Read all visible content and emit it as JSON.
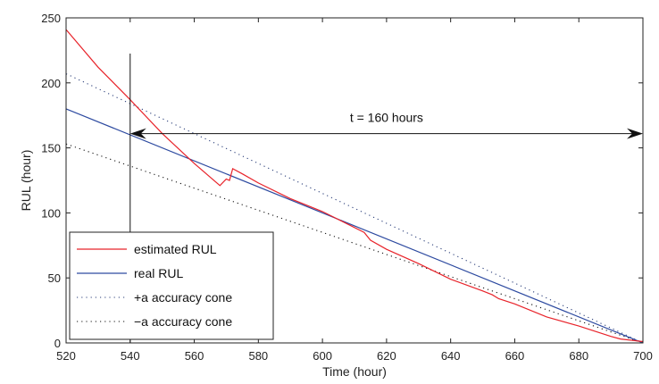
{
  "chart_data": {
    "type": "line",
    "title": "",
    "xlabel": "Time (hour)",
    "ylabel": "RUL (hour)",
    "xlim": [
      520,
      700
    ],
    "ylim": [
      0,
      250
    ],
    "xticks": [
      520,
      540,
      560,
      580,
      600,
      620,
      640,
      660,
      680,
      700
    ],
    "yticks": [
      0,
      50,
      100,
      150,
      200,
      250
    ],
    "grid": false,
    "legend_position": "bottom-left",
    "series": [
      {
        "name": "estimated RUL",
        "color": "#e8232a",
        "style": "solid",
        "x": [
          520,
          530,
          540,
          550,
          560,
          568,
          570,
          571,
          572,
          575,
          580,
          590,
          600,
          613,
          615,
          620,
          630,
          640,
          650,
          653,
          655,
          660,
          670,
          680,
          690,
          693,
          700
        ],
        "y": [
          241,
          212,
          187,
          161,
          138,
          121,
          126,
          125,
          134,
          130,
          123,
          111,
          101,
          85,
          79,
          72,
          61,
          49,
          40,
          37,
          34,
          30,
          20,
          13,
          5,
          3,
          1
        ]
      },
      {
        "name": "real RUL",
        "color": "#2d4aa0",
        "style": "solid",
        "x": [
          520,
          700
        ],
        "y": [
          180,
          0
        ]
      },
      {
        "name": "+a accuracy cone",
        "color": "#2b3f7a",
        "style": "dotted",
        "x": [
          520,
          700
        ],
        "y": [
          207,
          0
        ]
      },
      {
        "name": "−a accuracy cone",
        "color": "#111111",
        "style": "dotted",
        "x": [
          520,
          700
        ],
        "y": [
          153,
          0
        ]
      }
    ],
    "annotations": {
      "vline_x": 540,
      "arrow_x": [
        540,
        700
      ],
      "arrow_y": 161,
      "arrow_label": "t = 160 hours"
    }
  }
}
